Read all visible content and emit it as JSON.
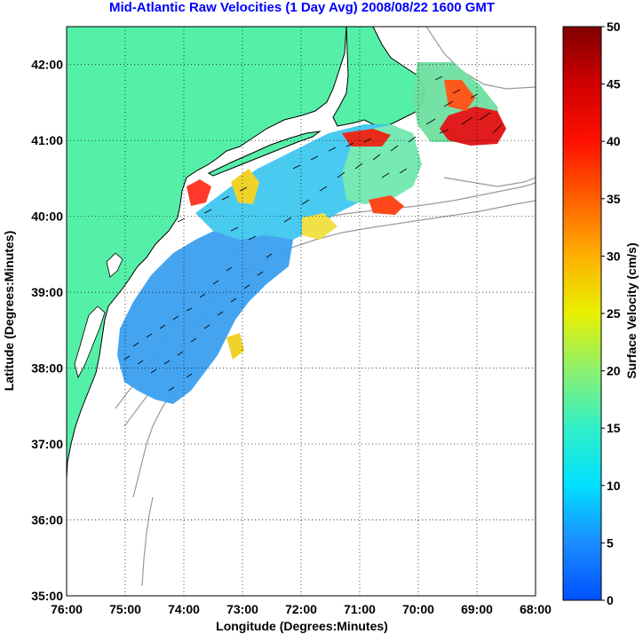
{
  "title": "Mid-Atlantic Raw Velocities (1 Day Avg) 2008/08/22 1600 GMT",
  "map": {
    "xlabel": "Longitude (Degrees:Minutes)",
    "ylabel": "Latitude (Degrees:Minutes)",
    "lon_ticks": [
      {
        "value": -76,
        "label": "76:00"
      },
      {
        "value": -75,
        "label": "75:00"
      },
      {
        "value": -74,
        "label": "74:00"
      },
      {
        "value": -73,
        "label": "73:00"
      },
      {
        "value": -72,
        "label": "72:00"
      },
      {
        "value": -71,
        "label": "71:00"
      },
      {
        "value": -70,
        "label": "70:00"
      },
      {
        "value": -69,
        "label": "69:00"
      },
      {
        "value": -68,
        "label": "68:00"
      }
    ],
    "lat_ticks": [
      {
        "value": 35,
        "label": "35:00"
      },
      {
        "value": 36,
        "label": "36:00"
      },
      {
        "value": 37,
        "label": "37:00"
      },
      {
        "value": 38,
        "label": "38:00"
      },
      {
        "value": 39,
        "label": "39:00"
      },
      {
        "value": 40,
        "label": "40:00"
      },
      {
        "value": 41,
        "label": "41:00"
      },
      {
        "value": 42,
        "label": "42:00"
      }
    ],
    "lon_range": [
      -76,
      -68
    ],
    "lat_range": [
      35,
      42.5
    ],
    "grid": "dotted",
    "land_color": "#55f0a8",
    "isobath_color": "#999999"
  },
  "colorbar": {
    "label": "Surface Velocity (cm/s)",
    "min": 0,
    "max": 50,
    "ticks": [
      {
        "value": 0,
        "label": "0"
      },
      {
        "value": 5,
        "label": "5"
      },
      {
        "value": 10,
        "label": "10"
      },
      {
        "value": 15,
        "label": "15"
      },
      {
        "value": 20,
        "label": "20"
      },
      {
        "value": 25,
        "label": "25"
      },
      {
        "value": 30,
        "label": "30"
      },
      {
        "value": 35,
        "label": "35"
      },
      {
        "value": 40,
        "label": "40"
      },
      {
        "value": 45,
        "label": "45"
      },
      {
        "value": 50,
        "label": "50"
      }
    ]
  }
}
